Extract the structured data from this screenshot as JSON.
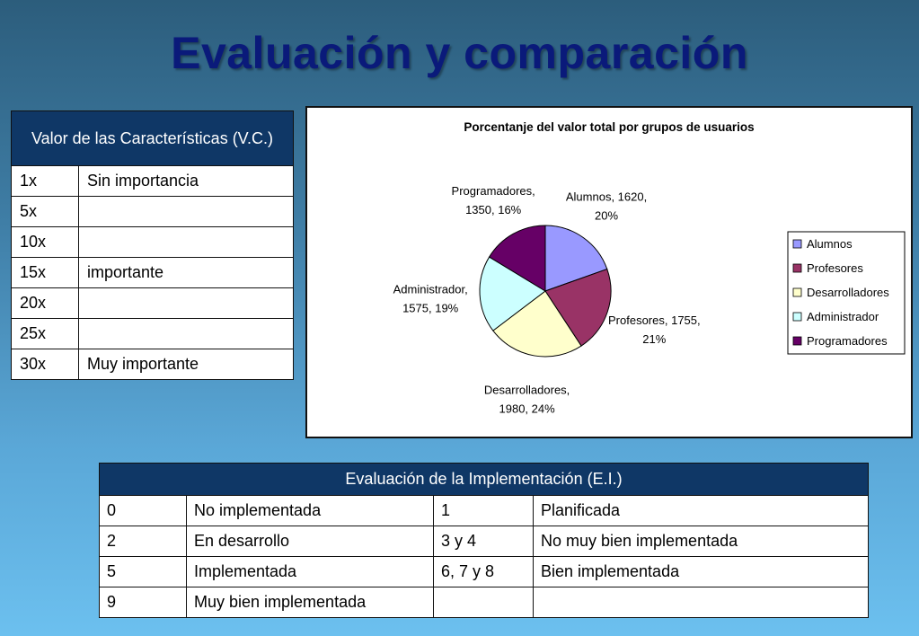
{
  "slide": {
    "title": "Evaluación y comparación"
  },
  "vc_table": {
    "header": "Valor de las Características (V.C.)",
    "rows": [
      {
        "value": "1x",
        "label": "Sin importancia"
      },
      {
        "value": "5x",
        "label": ""
      },
      {
        "value": "10x",
        "label": ""
      },
      {
        "value": "15x",
        "label": "importante"
      },
      {
        "value": "20x",
        "label": ""
      },
      {
        "value": "25x",
        "label": ""
      },
      {
        "value": "30x",
        "label": "Muy importante"
      }
    ]
  },
  "ei_table": {
    "header": "Evaluación de la Implementación (E.I.)",
    "rows": [
      [
        "0",
        "No implementada",
        "1",
        "Planificada"
      ],
      [
        "2",
        "En desarrollo",
        "3 y 4",
        "No muy bien implementada"
      ],
      [
        "5",
        "Implementada",
        "6, 7 y 8",
        "Bien implementada"
      ],
      [
        "9",
        "Muy bien implementada",
        "",
        ""
      ]
    ]
  },
  "chart_data": {
    "type": "pie",
    "title": "Porcentanje del valor total por grupos de usuarios",
    "categories": [
      "Alumnos",
      "Profesores",
      "Desarrolladores",
      "Administrador",
      "Programadores"
    ],
    "values": [
      1620,
      1755,
      1980,
      1575,
      1350
    ],
    "percentages": [
      "20%",
      "21%",
      "24%",
      "19%",
      "16%"
    ],
    "colors": [
      "#9999ff",
      "#993366",
      "#ffffcc",
      "#ccffff",
      "#660066"
    ],
    "data_labels": [
      [
        "Alumnos, 1620,",
        "20%"
      ],
      [
        "Profesores, 1755,",
        "21%"
      ],
      [
        "Desarrolladores,",
        "1980, 24%"
      ],
      [
        "Administrador,",
        "1575, 19%"
      ],
      [
        "Programadores,",
        "1350, 16%"
      ]
    ],
    "legend": [
      "Alumnos",
      "Profesores",
      "Desarrolladores",
      "Administrador",
      "Programadores"
    ],
    "legend_position": "right"
  }
}
